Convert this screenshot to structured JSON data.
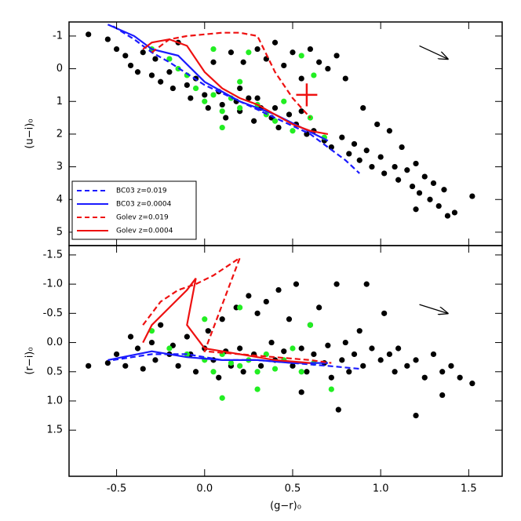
{
  "chart_data": [
    {
      "type": "scatter",
      "y_label": "(u−i)₀",
      "y_inverted": true,
      "xlim": [
        -0.77,
        1.69
      ],
      "xticks": [
        -0.5,
        0,
        0.5,
        1,
        1.5
      ],
      "ylim": [
        -1.43,
        5.41
      ],
      "yticks": [
        -1,
        0,
        1,
        2,
        3,
        4,
        5
      ],
      "legend": "lower left",
      "points": [
        {
          "color": "#000000",
          "x": [
            -0.66,
            -0.55,
            -0.5,
            -0.45,
            -0.42,
            -0.38,
            -0.35,
            -0.3,
            -0.28,
            -0.25,
            -0.2,
            -0.18,
            -0.15,
            -0.1,
            -0.08,
            -0.05,
            0.0,
            0.02,
            0.05,
            0.08,
            0.1,
            0.12,
            0.15,
            0.18,
            0.2,
            0.22,
            0.25,
            0.28,
            0.3,
            0.32,
            0.35,
            0.38,
            0.4,
            0.42,
            0.45,
            0.48,
            0.5,
            0.52,
            0.55,
            0.58,
            0.6,
            0.62,
            0.65,
            0.68,
            0.7,
            0.72,
            0.75,
            0.78,
            0.8,
            0.82,
            0.85,
            0.88,
            0.9,
            0.92,
            0.95,
            0.98,
            1.0,
            1.02,
            1.05,
            1.08,
            1.1,
            1.12,
            1.15,
            1.18,
            1.2,
            1.22,
            1.25,
            1.28,
            1.3,
            1.33,
            1.36,
            1.38,
            1.42,
            1.52,
            1.2,
            0.4,
            0.3,
            0.2,
            0.55
          ],
          "y": [
            -1.05,
            -0.9,
            -0.6,
            -0.4,
            -0.1,
            0.1,
            -0.5,
            0.2,
            -0.3,
            0.4,
            0.1,
            0.6,
            -0.8,
            0.5,
            0.9,
            0.3,
            0.8,
            1.2,
            -0.2,
            0.7,
            1.1,
            1.5,
            -0.5,
            1.0,
            1.3,
            -0.2,
            0.9,
            1.6,
            -0.6,
            1.2,
            -0.3,
            1.5,
            -0.8,
            1.8,
            -0.1,
            1.4,
            -0.5,
            1.7,
            0.3,
            2.0,
            -0.6,
            1.9,
            -0.2,
            2.2,
            0.0,
            2.4,
            -0.4,
            2.1,
            0.3,
            2.6,
            2.3,
            2.8,
            1.2,
            2.5,
            3.0,
            1.7,
            2.7,
            3.2,
            1.9,
            3.0,
            3.4,
            2.4,
            3.1,
            3.6,
            2.9,
            3.8,
            3.3,
            4.0,
            3.5,
            4.2,
            3.7,
            4.5,
            4.4,
            3.9,
            4.3,
            1.2,
            0.9,
            0.6,
            1.3
          ]
        },
        {
          "color": "#22ee22",
          "x": [
            -0.3,
            -0.2,
            -0.1,
            -0.05,
            0.0,
            0.05,
            0.1,
            0.1,
            0.15,
            0.2,
            0.25,
            0.3,
            0.35,
            0.4,
            0.45,
            0.5,
            0.55,
            0.6,
            0.62,
            0.68,
            -0.15,
            0.05,
            0.2
          ],
          "y": [
            -0.6,
            -0.3,
            0.2,
            0.6,
            1.0,
            0.8,
            1.3,
            1.8,
            0.9,
            1.2,
            -0.5,
            1.1,
            1.4,
            1.6,
            1.0,
            1.9,
            -0.4,
            1.5,
            0.2,
            2.1,
            0.0,
            -0.6,
            0.4
          ]
        }
      ],
      "series": [
        {
          "name": "BC03  z=0.019",
          "color": "#1a1aff",
          "dash": true,
          "x": [
            -0.52,
            -0.4,
            -0.3,
            -0.2,
            0,
            0.2,
            0.4,
            0.6,
            0.8,
            0.88
          ],
          "y": [
            -1.3,
            -0.9,
            -0.5,
            -0.2,
            0.5,
            1.0,
            1.5,
            2.0,
            2.8,
            3.2
          ]
        },
        {
          "name": "BC03  z=0.0004",
          "color": "#1a1aff",
          "dash": false,
          "x": [
            -0.55,
            -0.4,
            -0.3,
            -0.15,
            0,
            0.2,
            0.4,
            0.55,
            0.7
          ],
          "y": [
            -1.35,
            -1.0,
            -0.6,
            -0.4,
            0.4,
            1.0,
            1.4,
            1.8,
            2.2
          ]
        },
        {
          "name": "Golev  z=0.019",
          "color": "#ee1111",
          "dash": true,
          "x": [
            -0.3,
            -0.2,
            -0.1,
            0.0,
            0.1,
            0.2,
            0.3,
            0.4,
            0.5,
            0.6
          ],
          "y": [
            -0.5,
            -0.9,
            -1.0,
            -1.05,
            -1.1,
            -1.1,
            -1.0,
            0.1,
            0.9,
            1.5
          ]
        },
        {
          "name": "Golev  z=0.0004",
          "color": "#ee1111",
          "dash": false,
          "x": [
            -0.35,
            -0.3,
            -0.2,
            -0.1,
            0.0,
            0.1,
            0.2,
            0.3,
            0.4,
            0.5,
            0.6,
            0.7
          ],
          "y": [
            -0.6,
            -0.8,
            -0.9,
            -0.7,
            0.1,
            0.6,
            0.9,
            1.1,
            1.4,
            1.7,
            1.9,
            2.0
          ]
        }
      ],
      "reddening_vector": {
        "x": [
          1.22,
          1.38
        ],
        "y": [
          -0.7,
          -0.3
        ]
      },
      "error_cross": {
        "x": 0.58,
        "y": 0.8,
        "xerr": 0.06,
        "yerr": 0.35
      }
    },
    {
      "type": "scatter",
      "x_label": "(g−r)₀",
      "y_label": "(r−i)₀",
      "y_inverted": true,
      "xlim": [
        -0.77,
        1.69
      ],
      "xticks": [
        -0.5,
        {
          "value": 0,
          "label": "0.0"
        },
        0.5,
        {
          "value": 1,
          "label": "1.0"
        },
        1.5
      ],
      "ylim": [
        -1.66,
        2.29
      ],
      "yticks": [
        -1.5,
        {
          "value": -1,
          "label": "-1.0"
        },
        -0.5,
        {
          "value": 0,
          "label": "0.0"
        },
        0.5,
        {
          "value": 1,
          "label": "1.0"
        },
        1.5
      ],
      "points": [
        {
          "color": "#000000",
          "x": [
            -0.66,
            -0.55,
            -0.5,
            -0.45,
            -0.42,
            -0.38,
            -0.35,
            -0.3,
            -0.28,
            -0.25,
            -0.2,
            -0.18,
            -0.15,
            -0.1,
            -0.08,
            -0.05,
            0.0,
            0.02,
            0.05,
            0.08,
            0.1,
            0.12,
            0.15,
            0.18,
            0.2,
            0.22,
            0.25,
            0.28,
            0.3,
            0.32,
            0.35,
            0.38,
            0.4,
            0.42,
            0.45,
            0.48,
            0.5,
            0.52,
            0.55,
            0.58,
            0.6,
            0.62,
            0.65,
            0.68,
            0.7,
            0.72,
            0.75,
            0.78,
            0.8,
            0.82,
            0.85,
            0.88,
            0.9,
            0.92,
            0.95,
            1.0,
            1.02,
            1.05,
            1.08,
            1.1,
            1.15,
            1.2,
            1.25,
            1.3,
            1.35,
            1.4,
            1.45,
            1.52,
            1.2,
            0.76,
            0.55,
            1.35
          ],
          "y": [
            0.4,
            0.35,
            0.2,
            0.4,
            -0.1,
            0.1,
            0.45,
            0.0,
            0.3,
            -0.3,
            0.2,
            0.05,
            0.4,
            -0.1,
            0.2,
            0.5,
            0.1,
            -0.2,
            0.3,
            0.6,
            -0.4,
            0.15,
            0.4,
            -0.6,
            0.1,
            0.5,
            -0.8,
            0.2,
            -0.5,
            0.4,
            -0.7,
            0.0,
            0.3,
            -0.9,
            0.15,
            -0.4,
            0.4,
            -1.0,
            0.1,
            0.5,
            -0.3,
            0.2,
            -0.6,
            0.35,
            0.05,
            0.6,
            -1.0,
            0.3,
            0.0,
            0.5,
            0.2,
            -0.2,
            0.4,
            -1.0,
            0.1,
            0.3,
            -0.5,
            0.2,
            0.5,
            0.1,
            0.4,
            0.3,
            0.6,
            0.2,
            0.5,
            0.4,
            0.6,
            0.7,
            1.25,
            1.15,
            0.85,
            0.9
          ]
        },
        {
          "color": "#22ee22",
          "x": [
            -0.3,
            -0.2,
            -0.1,
            0.0,
            0.05,
            0.1,
            0.1,
            0.15,
            0.2,
            0.2,
            0.25,
            0.3,
            0.35,
            0.4,
            0.45,
            0.5,
            0.55,
            0.6,
            0.62,
            0.72,
            0.0,
            0.3
          ],
          "y": [
            -0.2,
            0.1,
            0.2,
            0.3,
            0.5,
            0.95,
            0.2,
            0.35,
            -0.6,
            0.4,
            0.3,
            0.5,
            0.2,
            0.45,
            0.3,
            0.1,
            0.5,
            -0.3,
            0.35,
            0.8,
            -0.4,
            0.8
          ]
        }
      ],
      "series": [
        {
          "color": "#1a1aff",
          "dash": true,
          "x": [
            -0.52,
            -0.3,
            -0.1,
            0.1,
            0.3,
            0.5,
            0.7,
            0.88
          ],
          "y": [
            0.3,
            0.2,
            0.2,
            0.3,
            0.3,
            0.35,
            0.4,
            0.45
          ]
        },
        {
          "color": "#1a1aff",
          "dash": false,
          "x": [
            -0.55,
            -0.3,
            -0.1,
            0.1,
            0.3,
            0.5,
            0.7
          ],
          "y": [
            0.3,
            0.15,
            0.25,
            0.3,
            0.3,
            0.35,
            0.35
          ]
        },
        {
          "color": "#ee1111",
          "dash": true,
          "x": [
            -0.35,
            -0.25,
            -0.15,
            -0.05,
            0.05,
            0.2,
            0.0,
            0.2,
            0.4,
            0.6,
            0.72
          ],
          "y": [
            -0.3,
            -0.7,
            -0.9,
            -1.0,
            -1.15,
            -1.45,
            0.15,
            0.2,
            0.25,
            0.3,
            0.35
          ]
        },
        {
          "color": "#ee1111",
          "dash": false,
          "x": [
            -0.35,
            -0.3,
            -0.2,
            -0.1,
            -0.05,
            -0.1,
            0.0,
            0.2,
            0.4,
            0.6
          ],
          "y": [
            0.0,
            -0.3,
            -0.6,
            -0.9,
            -1.1,
            -0.3,
            0.1,
            0.2,
            0.3,
            0.35
          ]
        }
      ],
      "reddening_vector": {
        "x": [
          1.22,
          1.38
        ],
        "y": [
          -0.65,
          -0.5
        ]
      }
    }
  ]
}
